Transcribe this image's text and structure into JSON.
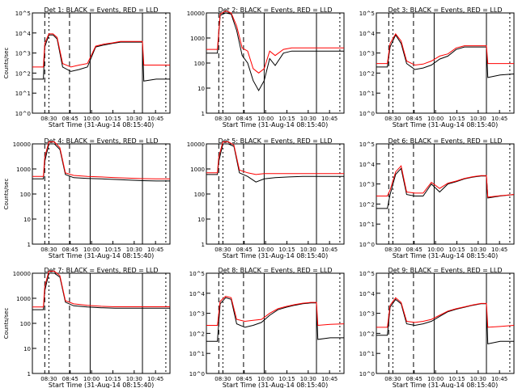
{
  "xlabel": "Start Time (31-Aug-14 08:15:40)",
  "ylabel": "Counts/sec",
  "x_ticks": [
    "08:30",
    "08:45",
    "10:00",
    "10:15",
    "10:30",
    "10:45"
  ],
  "colors": {
    "events": "#000000",
    "lld": "#ff0000"
  },
  "chart_data": [
    {
      "type": "line",
      "title": "Det 1: BLACK = Events, RED = LLD",
      "yscale": "log",
      "ylim": [
        1,
        100000
      ],
      "y_ticks": [
        "10^0",
        "10^1",
        "10^2",
        "10^3",
        "10^4",
        "10^5"
      ],
      "series": [
        {
          "name": "Events",
          "x": [
            0,
            0.08,
            0.09,
            0.12,
            0.15,
            0.18,
            0.22,
            0.28,
            0.34,
            0.4,
            0.46,
            0.52,
            0.58,
            0.64,
            0.7,
            0.76,
            0.8,
            0.81,
            0.9,
            1.0
          ],
          "y": [
            50,
            50,
            2000,
            8000,
            8000,
            5000,
            200,
            120,
            150,
            200,
            2000,
            2500,
            3000,
            3500,
            3500,
            3500,
            3500,
            40,
            50,
            50
          ]
        },
        {
          "name": "LLD",
          "x": [
            0,
            0.08,
            0.09,
            0.12,
            0.15,
            0.18,
            0.22,
            0.28,
            0.34,
            0.4,
            0.46,
            0.52,
            0.58,
            0.64,
            0.7,
            0.76,
            0.8,
            0.81,
            0.9,
            1.0
          ],
          "y": [
            200,
            200,
            3000,
            9000,
            9000,
            6000,
            300,
            200,
            250,
            300,
            2200,
            2800,
            3200,
            3800,
            3800,
            3800,
            3800,
            250,
            250,
            250
          ]
        }
      ]
    },
    {
      "type": "line",
      "title": "Det 2: BLACK = Events, RED = LLD",
      "yscale": "log",
      "ylim": [
        1,
        10000
      ],
      "y_ticks": [
        "1",
        "10",
        "100",
        "1000",
        "10000"
      ],
      "series": [
        {
          "name": "Events",
          "x": [
            0,
            0.08,
            0.1,
            0.14,
            0.18,
            0.22,
            0.26,
            0.3,
            0.34,
            0.38,
            0.42,
            0.46,
            0.5,
            0.56,
            0.62,
            0.7,
            0.8,
            0.9,
            1.0
          ],
          "y": [
            250,
            250,
            8000,
            10000,
            9000,
            2000,
            200,
            100,
            20,
            8,
            20,
            150,
            80,
            250,
            300,
            300,
            300,
            300,
            300
          ]
        },
        {
          "name": "LLD",
          "x": [
            0,
            0.08,
            0.1,
            0.14,
            0.18,
            0.22,
            0.26,
            0.3,
            0.34,
            0.38,
            0.42,
            0.46,
            0.5,
            0.56,
            0.62,
            0.7,
            0.8,
            0.9,
            1.0
          ],
          "y": [
            350,
            350,
            9000,
            12000,
            10000,
            3000,
            400,
            300,
            60,
            40,
            60,
            300,
            200,
            350,
            400,
            400,
            400,
            400,
            400
          ]
        }
      ]
    },
    {
      "type": "line",
      "title": "Det 3: BLACK = Events, RED = LLD",
      "yscale": "log",
      "ylim": [
        1,
        100000
      ],
      "y_ticks": [
        "10^0",
        "10^1",
        "10^2",
        "10^3",
        "10^4",
        "10^5"
      ],
      "series": [
        {
          "name": "Events",
          "x": [
            0,
            0.08,
            0.1,
            0.14,
            0.18,
            0.22,
            0.28,
            0.34,
            0.4,
            0.46,
            0.52,
            0.58,
            0.64,
            0.7,
            0.76,
            0.8,
            0.81,
            0.9,
            1.0
          ],
          "y": [
            200,
            200,
            2000,
            8000,
            3000,
            300,
            150,
            180,
            250,
            500,
            700,
            1500,
            2000,
            2000,
            2000,
            2000,
            60,
            80,
            90
          ]
        },
        {
          "name": "LLD",
          "x": [
            0,
            0.08,
            0.1,
            0.14,
            0.18,
            0.22,
            0.28,
            0.34,
            0.4,
            0.46,
            0.52,
            0.58,
            0.64,
            0.7,
            0.76,
            0.8,
            0.81,
            0.9,
            1.0
          ],
          "y": [
            300,
            300,
            3000,
            9000,
            4000,
            400,
            250,
            280,
            400,
            700,
            900,
            1800,
            2300,
            2300,
            2300,
            2300,
            300,
            300,
            300
          ]
        }
      ]
    },
    {
      "type": "line",
      "title": "Det 4: BLACK = Events, RED = LLD",
      "yscale": "log",
      "ylim": [
        1,
        10000
      ],
      "y_ticks": [
        "1",
        "10",
        "100",
        "1000",
        "10000"
      ],
      "series": [
        {
          "name": "Events",
          "x": [
            0,
            0.08,
            0.09,
            0.12,
            0.16,
            0.2,
            0.24,
            0.3,
            0.4,
            0.5,
            0.6,
            0.7,
            0.8,
            0.9,
            1.0
          ],
          "y": [
            400,
            400,
            2000,
            10000,
            10000,
            6000,
            600,
            450,
            420,
            400,
            380,
            360,
            340,
            330,
            330
          ]
        },
        {
          "name": "LLD",
          "x": [
            0,
            0.08,
            0.09,
            0.12,
            0.16,
            0.2,
            0.24,
            0.3,
            0.4,
            0.5,
            0.6,
            0.7,
            0.8,
            0.9,
            1.0
          ],
          "y": [
            500,
            500,
            3000,
            12000,
            12000,
            7000,
            700,
            550,
            500,
            480,
            450,
            430,
            410,
            400,
            400
          ]
        }
      ]
    },
    {
      "type": "line",
      "title": "Det 5: BLACK = Events, RED = LLD",
      "yscale": "log",
      "ylim": [
        1,
        10000
      ],
      "y_ticks": [
        "1",
        "10",
        "100",
        "1000",
        "10000"
      ],
      "series": [
        {
          "name": "Events",
          "x": [
            0,
            0.08,
            0.09,
            0.12,
            0.16,
            0.2,
            0.24,
            0.3,
            0.36,
            0.42,
            0.5,
            0.6,
            0.7,
            0.8,
            0.9,
            1.0
          ],
          "y": [
            600,
            600,
            2000,
            10000,
            10000,
            8000,
            700,
            500,
            300,
            400,
            450,
            480,
            500,
            500,
            500,
            500
          ]
        },
        {
          "name": "LLD",
          "x": [
            0,
            0.08,
            0.09,
            0.12,
            0.16,
            0.2,
            0.24,
            0.3,
            0.36,
            0.42,
            0.5,
            0.6,
            0.7,
            0.8,
            0.9,
            1.0
          ],
          "y": [
            700,
            700,
            3000,
            12000,
            12000,
            9000,
            900,
            700,
            600,
            650,
            650,
            650,
            650,
            650,
            650,
            650
          ]
        }
      ]
    },
    {
      "type": "line",
      "title": "Det 6: BLACK = Events, RED = LLD",
      "yscale": "log",
      "ylim": [
        1,
        100000
      ],
      "y_ticks": [
        "10^0",
        "10^1",
        "10^2",
        "10^3",
        "10^4",
        "10^5"
      ],
      "series": [
        {
          "name": "Events",
          "x": [
            0,
            0.08,
            0.1,
            0.14,
            0.18,
            0.22,
            0.28,
            0.34,
            0.4,
            0.46,
            0.52,
            0.58,
            0.64,
            0.7,
            0.76,
            0.8,
            0.81,
            0.9,
            1.0
          ],
          "y": [
            60,
            60,
            300,
            3000,
            6000,
            300,
            250,
            250,
            1000,
            400,
            1000,
            1300,
            1800,
            2200,
            2500,
            2500,
            200,
            250,
            300
          ]
        },
        {
          "name": "LLD",
          "x": [
            0,
            0.08,
            0.1,
            0.14,
            0.18,
            0.22,
            0.28,
            0.34,
            0.4,
            0.46,
            0.52,
            0.58,
            0.64,
            0.7,
            0.76,
            0.8,
            0.81,
            0.9,
            1.0
          ],
          "y": [
            250,
            250,
            500,
            4000,
            8000,
            400,
            350,
            350,
            1200,
            600,
            1100,
            1400,
            1900,
            2300,
            2600,
            2600,
            220,
            260,
            300
          ]
        }
      ]
    },
    {
      "type": "line",
      "title": "Det 7: BLACK = Events, RED = LLD",
      "yscale": "log",
      "ylim": [
        1,
        10000
      ],
      "y_ticks": [
        "1",
        "10",
        "100",
        "1000",
        "10000"
      ],
      "series": [
        {
          "name": "Events",
          "x": [
            0,
            0.08,
            0.09,
            0.12,
            0.16,
            0.2,
            0.24,
            0.3,
            0.4,
            0.5,
            0.6,
            0.7,
            0.8,
            0.9,
            1.0
          ],
          "y": [
            350,
            350,
            2000,
            10000,
            10000,
            7000,
            700,
            500,
            450,
            420,
            400,
            400,
            400,
            400,
            400
          ]
        },
        {
          "name": "LLD",
          "x": [
            0,
            0.08,
            0.09,
            0.12,
            0.16,
            0.2,
            0.24,
            0.3,
            0.4,
            0.5,
            0.6,
            0.7,
            0.8,
            0.9,
            1.0
          ],
          "y": [
            450,
            450,
            3000,
            12000,
            12000,
            8000,
            800,
            600,
            520,
            480,
            460,
            460,
            460,
            460,
            460
          ]
        }
      ]
    },
    {
      "type": "line",
      "title": "Det 8: BLACK = Events, RED = LLD",
      "yscale": "log",
      "ylim": [
        1,
        100000
      ],
      "y_ticks": [
        "10^0",
        "10^1",
        "10^2",
        "10^3",
        "10^4",
        "10^5"
      ],
      "series": [
        {
          "name": "Events",
          "x": [
            0,
            0.08,
            0.1,
            0.14,
            0.18,
            0.22,
            0.28,
            0.34,
            0.4,
            0.46,
            0.52,
            0.58,
            0.64,
            0.7,
            0.76,
            0.8,
            0.81,
            0.9,
            1.0
          ],
          "y": [
            40,
            40,
            3000,
            6000,
            5000,
            300,
            200,
            250,
            350,
            800,
            1500,
            2000,
            2500,
            3000,
            3300,
            3300,
            50,
            60,
            60
          ]
        },
        {
          "name": "LLD",
          "x": [
            0,
            0.08,
            0.1,
            0.14,
            0.18,
            0.22,
            0.28,
            0.34,
            0.4,
            0.46,
            0.52,
            0.58,
            0.64,
            0.7,
            0.76,
            0.8,
            0.81,
            0.9,
            1.0
          ],
          "y": [
            250,
            250,
            4000,
            7000,
            6000,
            500,
            400,
            450,
            500,
            1000,
            1700,
            2200,
            2700,
            3200,
            3500,
            3500,
            250,
            280,
            300
          ]
        }
      ]
    },
    {
      "type": "line",
      "title": "Det 9: BLACK = Events, RED = LLD",
      "yscale": "log",
      "ylim": [
        1,
        100000
      ],
      "y_ticks": [
        "10^0",
        "10^1",
        "10^2",
        "10^3",
        "10^4",
        "10^5"
      ],
      "series": [
        {
          "name": "Events",
          "x": [
            0,
            0.08,
            0.1,
            0.14,
            0.18,
            0.22,
            0.28,
            0.34,
            0.4,
            0.46,
            0.52,
            0.58,
            0.64,
            0.7,
            0.76,
            0.8,
            0.81,
            0.9,
            1.0
          ],
          "y": [
            80,
            80,
            2000,
            5000,
            3000,
            300,
            250,
            300,
            400,
            700,
            1200,
            1600,
            2000,
            2500,
            3000,
            3000,
            30,
            40,
            40
          ]
        },
        {
          "name": "LLD",
          "x": [
            0,
            0.08,
            0.1,
            0.14,
            0.18,
            0.22,
            0.28,
            0.34,
            0.4,
            0.46,
            0.52,
            0.58,
            0.64,
            0.7,
            0.76,
            0.8,
            0.81,
            0.9,
            1.0
          ],
          "y": [
            200,
            200,
            2500,
            6000,
            3500,
            400,
            350,
            400,
            500,
            800,
            1300,
            1700,
            2100,
            2600,
            3100,
            3100,
            200,
            220,
            250
          ]
        }
      ]
    }
  ]
}
